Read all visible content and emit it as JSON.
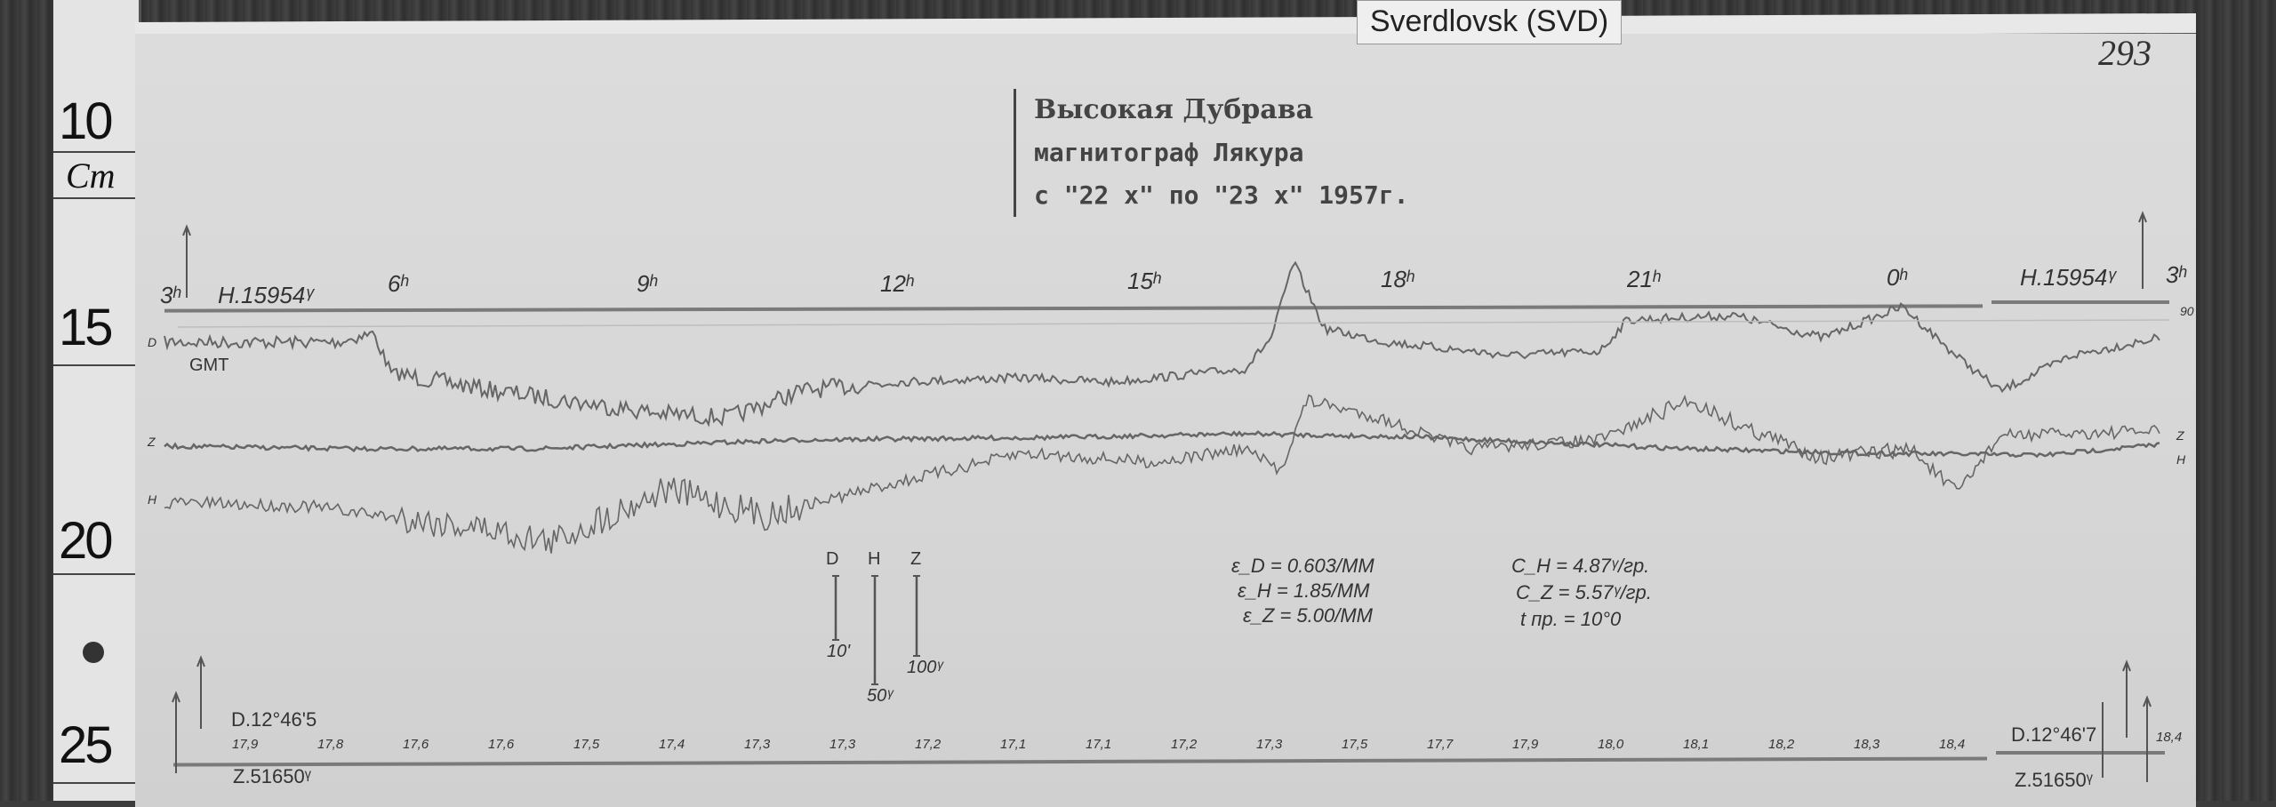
{
  "ruler": {
    "marks": [
      "10",
      "15",
      "20",
      "25"
    ],
    "unit": "Cm"
  },
  "station_label": "Sverdlovsk (SVD)",
  "sheet_number": "293",
  "stamp": {
    "station": "Высокая  Дубрава",
    "instrument": "магнитограф  Лякура",
    "period": "с \"22 x\" по \"23 x\" 1957г."
  },
  "hour_marks": [
    "3ʰ",
    "6ʰ",
    "9ʰ",
    "12ʰ",
    "15ʰ",
    "18ʰ",
    "21ʰ",
    "0ʰ",
    "3ʰ"
  ],
  "h_base_left": "H.15954ᵞ",
  "h_base_right": "H.15954ᵞ",
  "time_zone": "GMT",
  "trace_labels": {
    "d": "D",
    "z": "Z",
    "h": "H",
    "z_right": "Z",
    "h_right": "H",
    "right_top": "90"
  },
  "scale_bars": [
    {
      "component": "D",
      "value": "10'"
    },
    {
      "component": "H",
      "value": "50ᵞ"
    },
    {
      "component": "Z",
      "value": "100ᵞ"
    }
  ],
  "sensitivity": [
    "ε_D = 0.603/MM",
    "ε_H = 1.85/MM",
    "ε_Z = 5.00/MM"
  ],
  "coefficients": [
    "C_H = 4.87ᵞ/гр.",
    "C_Z = 5.57ᵞ/гр.",
    "t пр. = 10°0"
  ],
  "temperatures": [
    "17,9",
    "17,8",
    "17,6",
    "17,6",
    "17,5",
    "17,4",
    "17,3",
    "17,3",
    "17,2",
    "17,1",
    "17,1",
    "17,2",
    "17,3",
    "17,5",
    "17,7",
    "17,9",
    "18,0",
    "18,1",
    "18,2",
    "18,3",
    "18,4"
  ],
  "temperature_end": "18,4",
  "d_base_left": "D.12°46'5",
  "z_base_left": "Z.51650ᵞ",
  "d_base_right": "D.12°46'7",
  "z_base_right": "Z.51650ᵞ",
  "colors": {
    "paper": "#d8d8d8",
    "ink": "#555555",
    "background": "#3c3c3c"
  }
}
